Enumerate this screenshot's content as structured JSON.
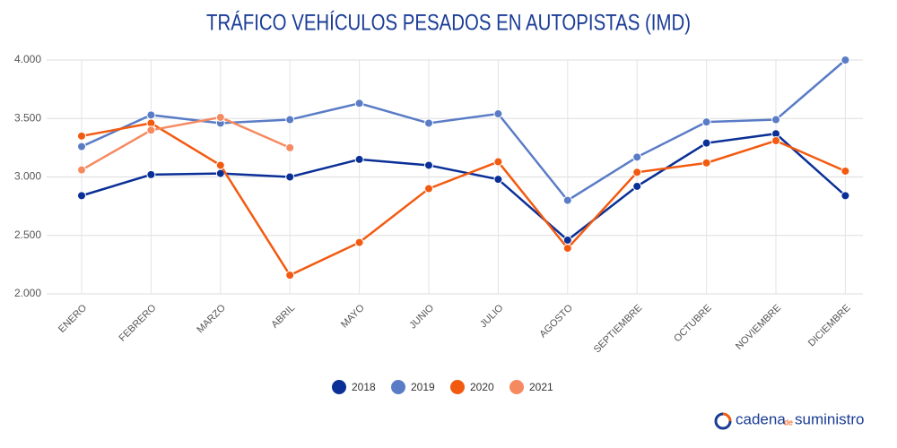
{
  "chart_data": {
    "type": "line",
    "title": "TRÁFICO VEHÍCULOS PESADOS EN AUTOPISTAS (IMD)",
    "categories": [
      "ENERO",
      "FEBRERO",
      "MARZO",
      "ABRIL",
      "MAYO",
      "JUNIO",
      "JULIO",
      "AGOSTO",
      "SEPTIEMBRE",
      "OCTUBRE",
      "NOVIEMBRE",
      "DICIEMBRE"
    ],
    "series": [
      {
        "name": "2018",
        "color": "#0a2f96",
        "values": [
          2840,
          3020,
          3030,
          3000,
          3150,
          3100,
          2980,
          2460,
          2920,
          3290,
          3370,
          2840
        ]
      },
      {
        "name": "2019",
        "color": "#5a7cc6",
        "values": [
          3260,
          3530,
          3460,
          3490,
          3630,
          3460,
          3540,
          2800,
          3170,
          3470,
          3490,
          4000
        ]
      },
      {
        "name": "2020",
        "color": "#f25a10",
        "values": [
          3350,
          3460,
          3100,
          2160,
          2440,
          2900,
          3130,
          2390,
          3040,
          3120,
          3310,
          3050
        ]
      },
      {
        "name": "2021",
        "color": "#f58a60",
        "values": [
          3060,
          3400,
          3510,
          3250,
          null,
          null,
          null,
          null,
          null,
          null,
          null,
          null
        ]
      }
    ],
    "ylim": [
      2000,
      4000
    ],
    "yticks": [
      {
        "value": 2000,
        "label": "2.000"
      },
      {
        "value": 2500,
        "label": "2.500"
      },
      {
        "value": 3000,
        "label": "3.000"
      },
      {
        "value": 3500,
        "label": "3.500"
      },
      {
        "value": 4000,
        "label": "4.000"
      }
    ],
    "grid": true,
    "legend": "bottom"
  },
  "brand": [
    "cadena",
    "de",
    "suministro"
  ]
}
